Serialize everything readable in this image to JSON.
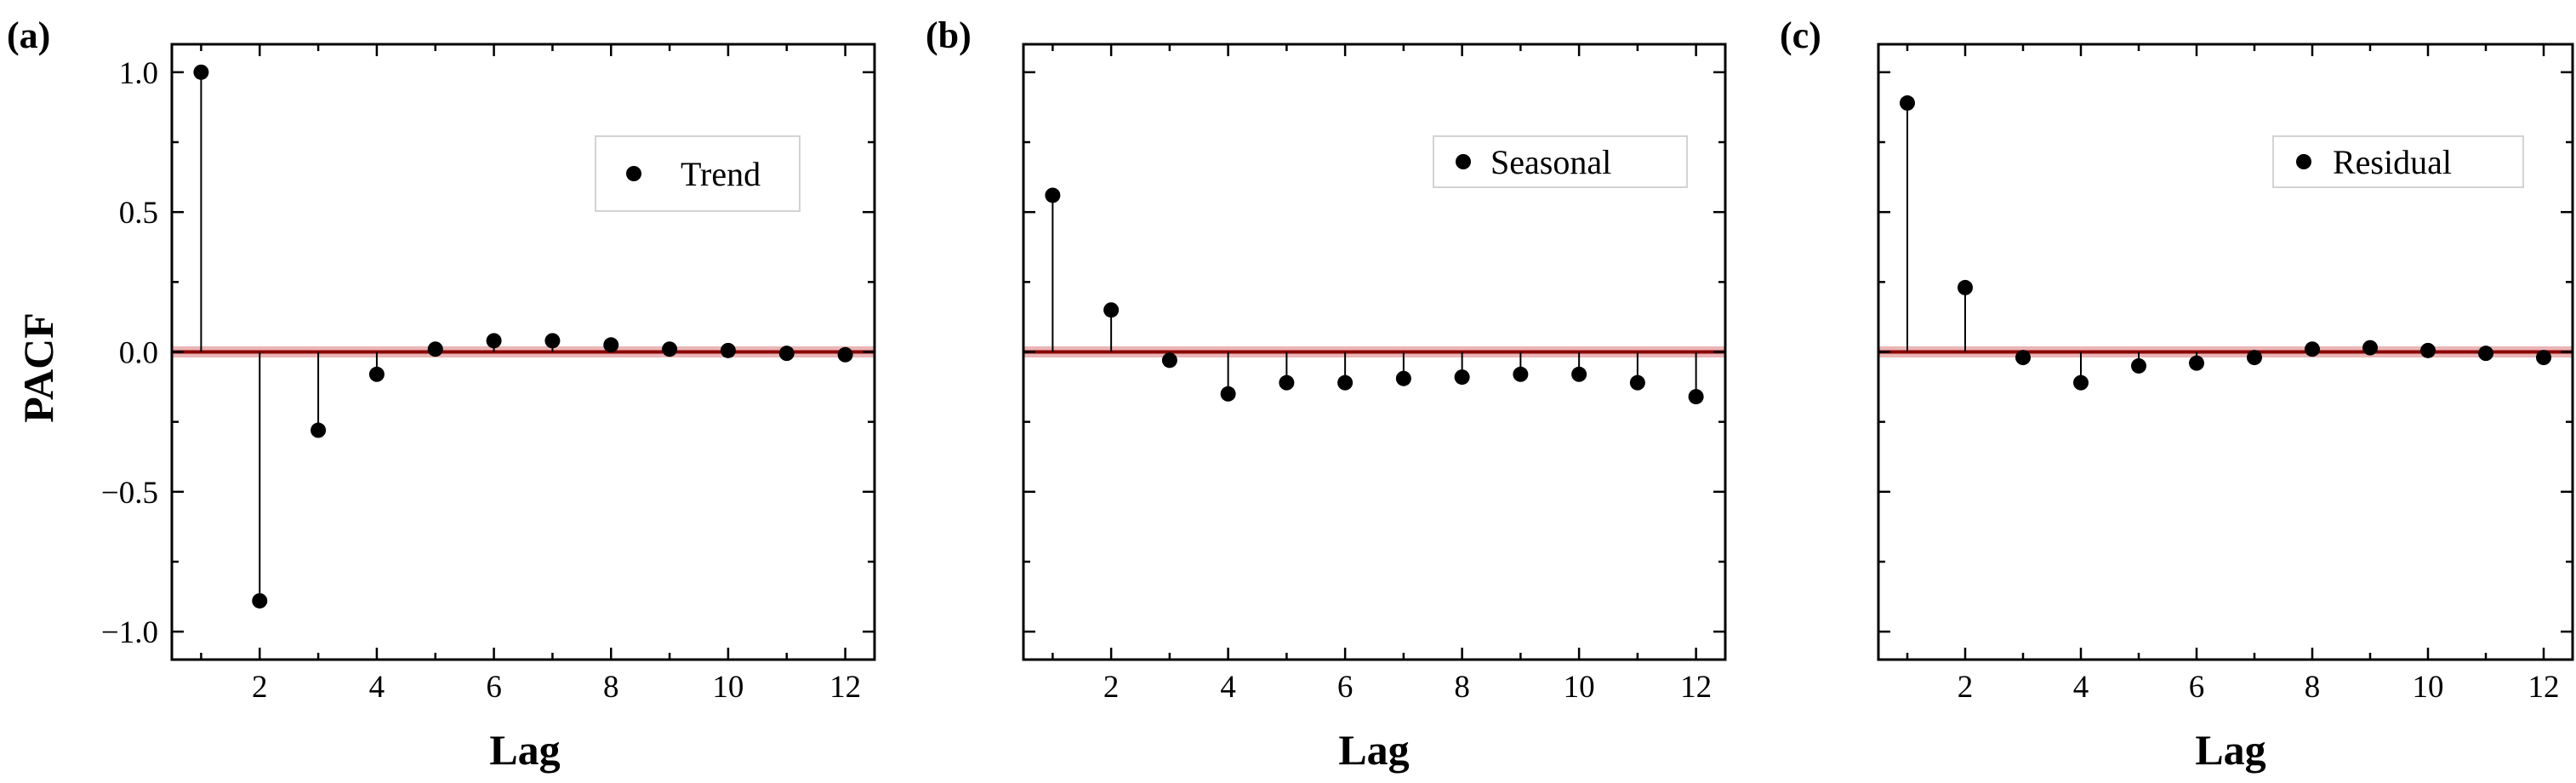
{
  "chart_data": [
    {
      "type": "stem",
      "panel_label": "(a)",
      "xlabel": "Lag",
      "ylabel": "PACF",
      "x": [
        1,
        2,
        3,
        4,
        5,
        6,
        7,
        8,
        9,
        10,
        11,
        12
      ],
      "series": [
        {
          "name": "Trend",
          "values": [
            1.0,
            -0.89,
            -0.28,
            -0.08,
            0.01,
            0.04,
            0.04,
            0.025,
            0.01,
            0.005,
            -0.005,
            -0.01
          ]
        }
      ],
      "xticks": [
        2,
        4,
        6,
        8,
        10,
        12
      ],
      "yticks": [
        1.0,
        0.5,
        0.0,
        -0.5,
        -1.0
      ],
      "ytick_labels": [
        "1.0",
        "0.5",
        "0.0",
        "−0.5",
        "−1.0"
      ],
      "xlim": [
        0.5,
        12.5
      ],
      "ylim": [
        -1.1,
        1.1
      ],
      "confidence_band": 0.02,
      "legend_position": "top-right",
      "show_yticklabels": true
    },
    {
      "type": "stem",
      "panel_label": "(b)",
      "xlabel": "Lag",
      "ylabel": "",
      "x": [
        1,
        2,
        3,
        4,
        5,
        6,
        7,
        8,
        9,
        10,
        11,
        12
      ],
      "series": [
        {
          "name": "Seasonal",
          "values": [
            0.56,
            0.15,
            -0.03,
            -0.15,
            -0.11,
            -0.11,
            -0.095,
            -0.09,
            -0.08,
            -0.08,
            -0.11,
            -0.16
          ]
        }
      ],
      "xticks": [
        2,
        4,
        6,
        8,
        10,
        12
      ],
      "yticks": [
        1.0,
        0.5,
        0.0,
        -0.5,
        -1.0
      ],
      "ytick_labels": [
        "",
        "",
        "",
        "",
        ""
      ],
      "xlim": [
        0.5,
        12.5
      ],
      "ylim": [
        -1.1,
        1.1
      ],
      "confidence_band": 0.02,
      "legend_position": "top-right",
      "show_yticklabels": false
    },
    {
      "type": "stem",
      "panel_label": "(c)",
      "xlabel": "Lag",
      "ylabel": "",
      "x": [
        1,
        2,
        3,
        4,
        5,
        6,
        7,
        8,
        9,
        10,
        11,
        12
      ],
      "series": [
        {
          "name": "Residual",
          "values": [
            0.89,
            0.23,
            -0.02,
            -0.11,
            -0.05,
            -0.04,
            -0.02,
            0.01,
            0.015,
            0.005,
            -0.005,
            -0.02
          ]
        }
      ],
      "xticks": [
        2,
        4,
        6,
        8,
        10,
        12
      ],
      "yticks": [
        1.0,
        0.5,
        0.0,
        -0.5,
        -1.0
      ],
      "ytick_labels": [
        "",
        "",
        "",
        "",
        ""
      ],
      "xlim": [
        0.5,
        12.5
      ],
      "ylim": [
        -1.1,
        1.1
      ],
      "confidence_band": 0.02,
      "legend_position": "top-right",
      "show_yticklabels": false
    }
  ],
  "colors": {
    "marker": "#000000",
    "stem": "#000000",
    "zero_line": "#8b0000",
    "band": "#e6a8a8",
    "legend_border": "#d3d3d3"
  }
}
